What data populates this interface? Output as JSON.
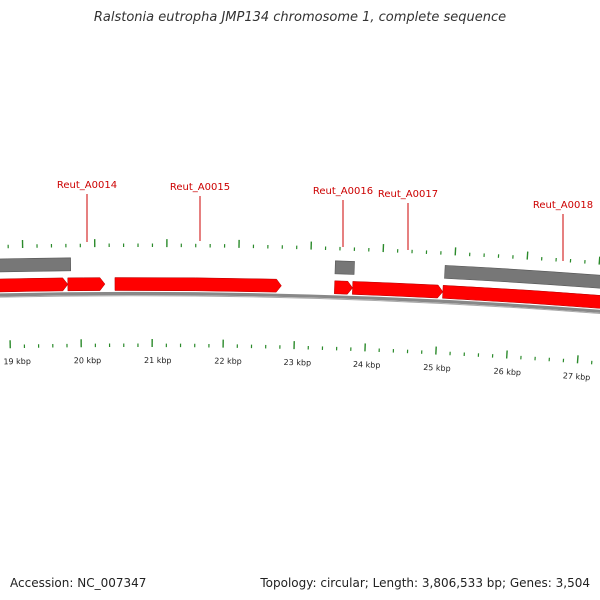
{
  "title": "Ralstonia eutropha JMP134 chromosome 1, complete sequence",
  "footer": {
    "accession": "Accession: NC_007347",
    "summary": "Topology: circular; Length: 3,806,533 bp; Genes: 3,504"
  },
  "colors": {
    "gene_forward": "#ff0000",
    "gene_other": "#777777",
    "backbone": "#888888",
    "ticks": "#2a8a2a",
    "label": "#cc0000"
  },
  "gene_labels": [
    "Reut_A0014",
    "Reut_A0015",
    "Reut_A0016",
    "Reut_A0017",
    "Reut_A0018"
  ],
  "scale_labels": [
    "19 kbp",
    "20 kbp",
    "21 kbp",
    "22 kbp",
    "23 kbp",
    "24 kbp",
    "25 kbp",
    "26 kbp",
    "27 kbp"
  ]
}
